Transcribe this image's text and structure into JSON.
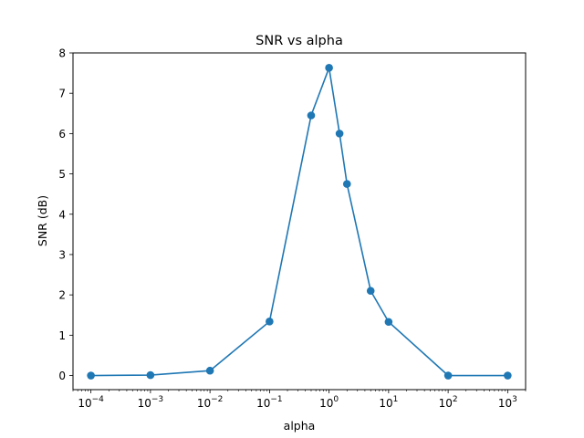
{
  "chart_data": {
    "type": "line",
    "title": "SNR vs alpha",
    "xlabel": "alpha",
    "ylabel": "SNR (dB)",
    "xscale": "log",
    "xlim": [
      5e-05,
      2000
    ],
    "ylim": [
      -0.35,
      8
    ],
    "x_ticks": [
      {
        "value": 0.0001,
        "base": "10",
        "exp": "−4"
      },
      {
        "value": 0.001,
        "base": "10",
        "exp": "−3"
      },
      {
        "value": 0.01,
        "base": "10",
        "exp": "−2"
      },
      {
        "value": 0.1,
        "base": "10",
        "exp": "−1"
      },
      {
        "value": 1,
        "base": "10",
        "exp": "0"
      },
      {
        "value": 10,
        "base": "10",
        "exp": "1"
      },
      {
        "value": 100,
        "base": "10",
        "exp": "2"
      },
      {
        "value": 1000,
        "base": "10",
        "exp": "3"
      }
    ],
    "y_ticks": [
      "0",
      "1",
      "2",
      "3",
      "4",
      "5",
      "6",
      "7",
      "8"
    ],
    "grid": false,
    "line_color": "#1f77b4",
    "series": [
      {
        "x": [
          0.0001,
          0.001,
          0.01,
          0.1,
          0.5,
          1,
          1.5,
          2,
          5,
          10,
          100,
          1000
        ],
        "y": [
          0.0,
          0.01,
          0.12,
          1.34,
          6.45,
          7.63,
          6.0,
          4.75,
          2.1,
          1.33,
          0.0,
          0.0
        ]
      }
    ]
  }
}
